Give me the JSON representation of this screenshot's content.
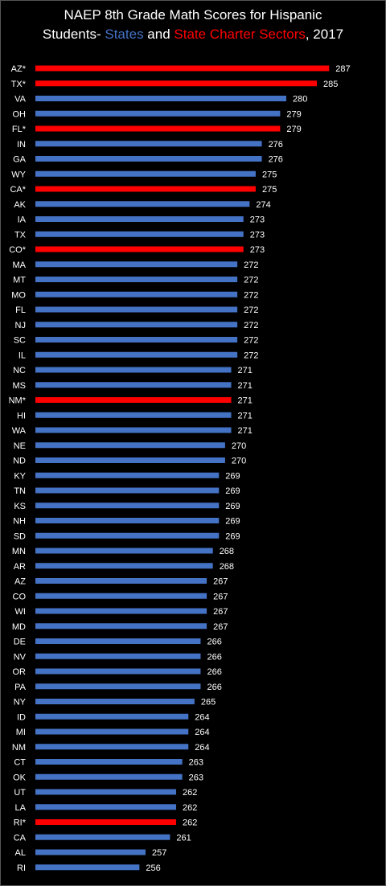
{
  "title": {
    "line1": "NAEP 8th Grade Math Scores for Hispanic",
    "line2_prefix": "Students- ",
    "line2_states": "States",
    "line2_and": " and ",
    "line2_charter": "State Charter Sectors",
    "line2_suffix": ", 2017"
  },
  "colors": {
    "states": "#4472C4",
    "charter": "#FF0000",
    "background": "#000000",
    "text": "#FFFFFF"
  },
  "chart_data": {
    "type": "bar",
    "orientation": "horizontal",
    "title": "NAEP 8th Grade Math Scores for Hispanic Students- States and State Charter Sectors, 2017",
    "categories": [
      "AZ*",
      "TX*",
      "VA",
      "OH",
      "FL*",
      "IN",
      "GA",
      "WY",
      "CA*",
      "AK",
      "IA",
      "TX",
      "CO*",
      "MA",
      "MT",
      "MO",
      "FL",
      "NJ",
      "SC",
      "IL",
      "NC",
      "MS",
      "NM*",
      "HI",
      "WA",
      "NE",
      "ND",
      "KY",
      "TN",
      "KS",
      "NH",
      "SD",
      "MN",
      "AR",
      "AZ",
      "CO",
      "WI",
      "MD",
      "DE",
      "NV",
      "OR",
      "PA",
      "NY",
      "ID",
      "MI",
      "NM",
      "CT",
      "OK",
      "UT",
      "LA",
      "RI*",
      "CA",
      "AL",
      "RI"
    ],
    "values": [
      287,
      285,
      280,
      279,
      279,
      276,
      276,
      275,
      275,
      274,
      273,
      273,
      273,
      272,
      272,
      272,
      272,
      272,
      272,
      272,
      271,
      271,
      271,
      271,
      271,
      270,
      270,
      269,
      269,
      269,
      269,
      269,
      268,
      268,
      267,
      267,
      267,
      267,
      266,
      266,
      266,
      266,
      265,
      264,
      264,
      264,
      263,
      263,
      262,
      262,
      262,
      261,
      257,
      256
    ],
    "charter": [
      true,
      true,
      false,
      false,
      true,
      false,
      false,
      false,
      true,
      false,
      false,
      false,
      true,
      false,
      false,
      false,
      false,
      false,
      false,
      false,
      false,
      false,
      true,
      false,
      false,
      false,
      false,
      false,
      false,
      false,
      false,
      false,
      false,
      false,
      false,
      false,
      false,
      false,
      false,
      false,
      false,
      false,
      false,
      false,
      false,
      false,
      false,
      false,
      false,
      false,
      true,
      false,
      false,
      false
    ],
    "legend": [
      "States",
      "State Charter Sectors"
    ],
    "grid": false
  }
}
